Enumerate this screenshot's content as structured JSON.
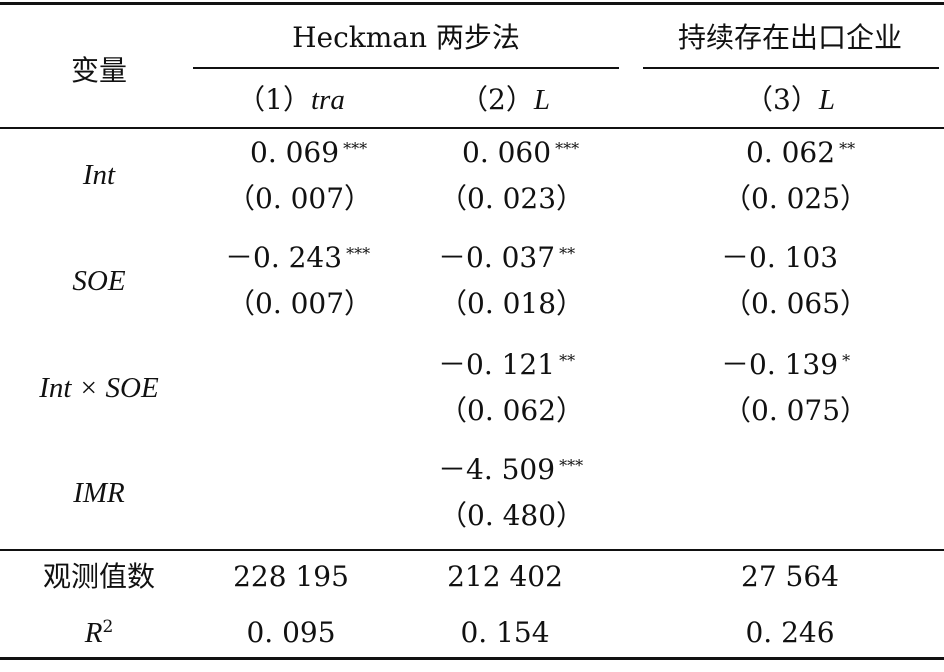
{
  "header": {
    "variable_label": "变量",
    "group1": "Heckman 两步法",
    "group2": "持续存在出口企业",
    "col1_num": "（1）",
    "col1_var": "tra",
    "col2_num": "（2）",
    "col2_var": "L",
    "col3_num": "（3）",
    "col3_var": "L"
  },
  "rows": {
    "int": {
      "label": "Int",
      "c1": "0. 069",
      "c1_sig": "***",
      "c1_se": "（0. 007）",
      "c2": "0. 060",
      "c2_sig": "***",
      "c2_se": "（0. 023）",
      "c3": "0. 062",
      "c3_sig": "**",
      "c3_se": "（0. 025）"
    },
    "soe": {
      "label": "SOE",
      "c1": "－0. 243",
      "c1_sig": "***",
      "c1_se": "（0. 007）",
      "c2": "－0. 037",
      "c2_sig": "**",
      "c2_se": "（0. 018）",
      "c3": "－0. 103",
      "c3_se": "（0. 065）"
    },
    "int_soe": {
      "label": "Int × SOE",
      "c2": "－0. 121",
      "c2_sig": "**",
      "c2_se": "（0. 062）",
      "c3": "－0. 139",
      "c3_sig": "*",
      "c3_se": "（0. 075）"
    },
    "imr": {
      "label": "IMR",
      "c2": "－4. 509",
      "c2_sig": "***",
      "c2_se": "（0. 480）"
    }
  },
  "footer": {
    "obs_label": "观测值数",
    "obs": [
      "228 195",
      "212 402",
      "27 564"
    ],
    "r2_label": "R",
    "r2_sup": "2",
    "r2": [
      "0. 095",
      "0. 154",
      "0. 246"
    ]
  }
}
